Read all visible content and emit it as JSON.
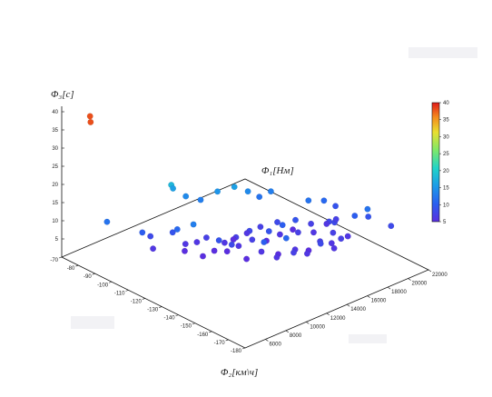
{
  "chart_data": {
    "type": "scatter",
    "title": "",
    "axes": {
      "x": {
        "label": "Φ₁[Нм]",
        "range": [
          4000,
          22000
        ],
        "ticks": [
          "6000",
          "8000",
          "10000",
          "12000",
          "14000",
          "16000",
          "18000",
          "20000",
          "22000"
        ]
      },
      "y": {
        "label": "Φ₂[км\\ч]",
        "range": [
          -180,
          -70
        ],
        "ticks": [
          "-70",
          "-80",
          "-90",
          "-100",
          "-110",
          "-120",
          "-130",
          "-140",
          "-150",
          "-160",
          "-170",
          "-180"
        ]
      },
      "z": {
        "label": "Φ₃[с]",
        "range": [
          0,
          42
        ],
        "ticks": [
          "5",
          "10",
          "15",
          "20",
          "25",
          "30",
          "35",
          "40"
        ]
      }
    },
    "colorbar": {
      "range": [
        5,
        40
      ],
      "ticks": [
        "5",
        "10",
        "15",
        "20",
        "25",
        "30",
        "35",
        "40"
      ],
      "placement": "right"
    },
    "grid": false,
    "points": [
      {
        "x": 5500,
        "y": -88,
        "z": 12
      },
      {
        "x": 5200,
        "y": -80,
        "z": 38
      },
      {
        "x": 5800,
        "y": -76,
        "z": 38
      },
      {
        "x": 7000,
        "y": -100,
        "z": 10
      },
      {
        "x": 7400,
        "y": -104,
        "z": 6
      },
      {
        "x": 7800,
        "y": -100,
        "z": 8
      },
      {
        "x": 9000,
        "y": -106,
        "z": 9
      },
      {
        "x": 9200,
        "y": -112,
        "z": 5
      },
      {
        "x": 9600,
        "y": -110,
        "z": 6
      },
      {
        "x": 10000,
        "y": -118,
        "z": 4
      },
      {
        "x": 10400,
        "y": -112,
        "z": 6
      },
      {
        "x": 10800,
        "y": -120,
        "z": 5
      },
      {
        "x": 11000,
        "y": -114,
        "z": 7
      },
      {
        "x": 11400,
        "y": -124,
        "z": 5
      },
      {
        "x": 11800,
        "y": -120,
        "z": 6
      },
      {
        "x": 12200,
        "y": -126,
        "z": 6
      },
      {
        "x": 12600,
        "y": -122,
        "z": 7
      },
      {
        "x": 13000,
        "y": -118,
        "z": 5
      },
      {
        "x": 13200,
        "y": -128,
        "z": 7
      },
      {
        "x": 13600,
        "y": -124,
        "z": 8
      },
      {
        "x": 14000,
        "y": -120,
        "z": 6
      },
      {
        "x": 14200,
        "y": -132,
        "z": 9
      },
      {
        "x": 14600,
        "y": -128,
        "z": 5
      },
      {
        "x": 15000,
        "y": -122,
        "z": 7
      },
      {
        "x": 15200,
        "y": -134,
        "z": 10
      },
      {
        "x": 15600,
        "y": -130,
        "z": 6
      },
      {
        "x": 16000,
        "y": -126,
        "z": 8
      },
      {
        "x": 16400,
        "y": -136,
        "z": 7
      },
      {
        "x": 16800,
        "y": -132,
        "z": 9
      },
      {
        "x": 17200,
        "y": -128,
        "z": 5
      },
      {
        "x": 17600,
        "y": -138,
        "z": 6
      },
      {
        "x": 18000,
        "y": -134,
        "z": 7
      },
      {
        "x": 18400,
        "y": -130,
        "z": 12
      },
      {
        "x": 18800,
        "y": -140,
        "z": 8
      },
      {
        "x": 19200,
        "y": -136,
        "z": 6
      },
      {
        "x": 19600,
        "y": -132,
        "z": 11
      },
      {
        "x": 10500,
        "y": -96,
        "z": 18
      },
      {
        "x": 11000,
        "y": -94,
        "z": 16
      },
      {
        "x": 11600,
        "y": -98,
        "z": 14
      },
      {
        "x": 12400,
        "y": -102,
        "z": 13
      },
      {
        "x": 13400,
        "y": -106,
        "z": 15
      },
      {
        "x": 14400,
        "y": -110,
        "z": 16
      },
      {
        "x": 15400,
        "y": -112,
        "z": 14
      },
      {
        "x": 16200,
        "y": -114,
        "z": 12
      },
      {
        "x": 17000,
        "y": -116,
        "z": 13
      },
      {
        "x": 9400,
        "y": -116,
        "z": 13
      },
      {
        "x": 8800,
        "y": -110,
        "z": 11
      },
      {
        "x": 12000,
        "y": -132,
        "z": 4
      },
      {
        "x": 12800,
        "y": -136,
        "z": 6
      },
      {
        "x": 13800,
        "y": -140,
        "z": 5
      },
      {
        "x": 14800,
        "y": -144,
        "z": 6
      },
      {
        "x": 15800,
        "y": -146,
        "z": 5
      },
      {
        "x": 16600,
        "y": -148,
        "z": 7
      },
      {
        "x": 17400,
        "y": -150,
        "z": 6
      },
      {
        "x": 18200,
        "y": -146,
        "z": 7
      },
      {
        "x": 19000,
        "y": -142,
        "z": 8
      },
      {
        "x": 19800,
        "y": -138,
        "z": 7
      },
      {
        "x": 20400,
        "y": -134,
        "z": 9
      },
      {
        "x": 11200,
        "y": -128,
        "z": 8
      },
      {
        "x": 10600,
        "y": -124,
        "z": 9
      },
      {
        "x": 13000,
        "y": -144,
        "z": 6
      },
      {
        "x": 14000,
        "y": -148,
        "z": 7
      },
      {
        "x": 15000,
        "y": -150,
        "z": 6
      },
      {
        "x": 16000,
        "y": -152,
        "z": 8
      },
      {
        "x": 17000,
        "y": -154,
        "z": 6
      },
      {
        "x": 18000,
        "y": -152,
        "z": 7
      },
      {
        "x": 19000,
        "y": -150,
        "z": 6
      },
      {
        "x": 12400,
        "y": -140,
        "z": 10
      },
      {
        "x": 13600,
        "y": -146,
        "z": 11
      },
      {
        "x": 21000,
        "y": -150,
        "z": 9
      },
      {
        "x": 21600,
        "y": -160,
        "z": 8
      },
      {
        "x": 20600,
        "y": -152,
        "z": 12
      },
      {
        "x": 20000,
        "y": -148,
        "z": 10
      }
    ]
  }
}
